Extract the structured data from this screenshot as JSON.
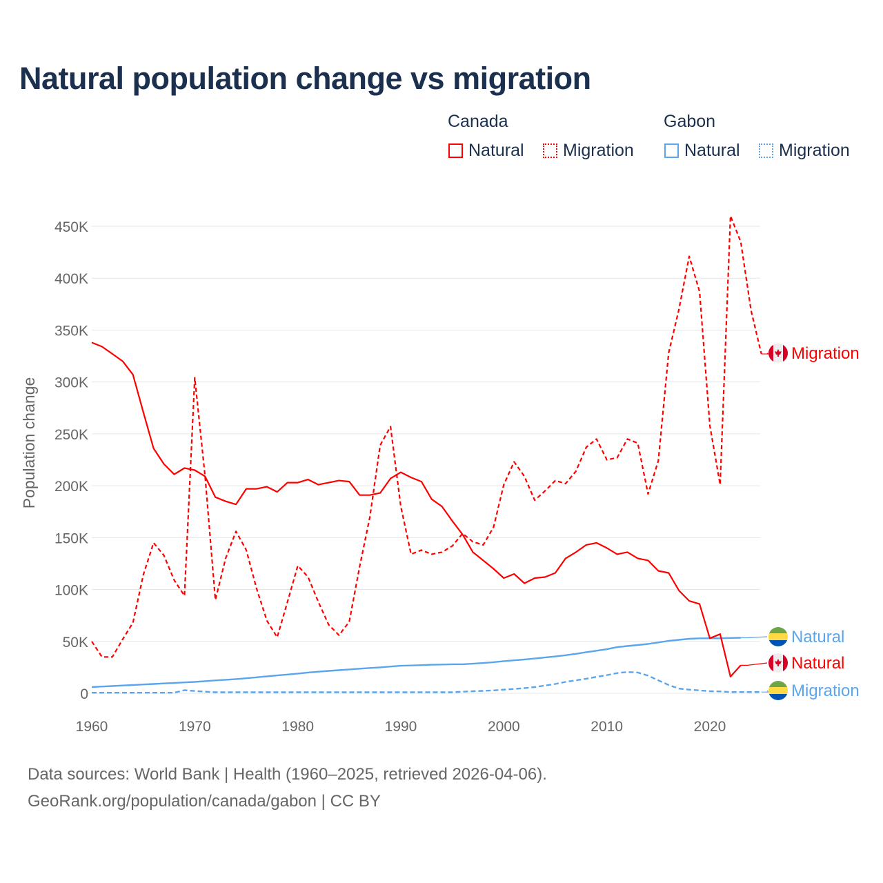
{
  "colors": {
    "canada": "#ff0000",
    "gabon": "#5aa5ec",
    "title": "#1b2f4e",
    "grid": "#e6e6e6",
    "axis_text": "#666666"
  },
  "legend": {
    "groups": [
      {
        "country": "Canada",
        "color": "#ff0000",
        "items": [
          "Natural",
          "Migration"
        ]
      },
      {
        "country": "Gabon",
        "color": "#5aa5ec",
        "items": [
          "Natural",
          "Migration"
        ]
      }
    ]
  },
  "footer": {
    "line1": "Data sources: World Bank | Health (1960–2025, retrieved 2026-04-06).",
    "line2": "GeoRank.org/population/canada/gabon | CC BY"
  },
  "chart_data": {
    "type": "line",
    "title": "Natural population change vs migration",
    "xlabel": "",
    "ylabel": "Population change",
    "xlim": [
      1960,
      2025
    ],
    "ylim": [
      0,
      450000
    ],
    "x_ticks": [
      1960,
      1970,
      1980,
      1990,
      2000,
      2010,
      2020
    ],
    "x_tick_labels": [
      "1960",
      "1970",
      "1980",
      "1990",
      "2000",
      "2010",
      "2020"
    ],
    "y_ticks": [
      0,
      50000,
      100000,
      150000,
      200000,
      250000,
      300000,
      350000,
      400000,
      450000
    ],
    "y_tick_labels": [
      "0",
      "50K",
      "100K",
      "150K",
      "200K",
      "250K",
      "300K",
      "350K",
      "400K",
      "450K"
    ],
    "grid": true,
    "legend_position": "top-right",
    "series": [
      {
        "name": "Canada Natural",
        "country": "Canada",
        "kind": "Natural",
        "label": "Natural",
        "color": "#ff0000",
        "dash": "solid",
        "flag": "canada-flag",
        "start_year": 1960,
        "values_k": [
          338,
          334,
          327,
          320,
          307,
          271,
          236,
          221,
          211,
          217,
          215,
          209,
          189,
          185,
          182,
          197,
          197,
          199,
          194,
          203,
          203,
          206,
          201,
          203,
          205,
          204,
          191,
          191,
          193,
          207,
          213,
          208,
          204,
          187,
          180,
          166,
          153,
          136,
          128,
          120,
          111,
          115,
          106,
          111,
          112,
          116,
          130,
          136,
          143,
          145,
          140,
          134,
          136,
          130,
          128,
          118,
          116,
          99,
          89,
          86,
          53,
          57,
          16,
          27
        ]
      },
      {
        "name": "Canada Migration",
        "country": "Canada",
        "kind": "Migration",
        "label": "Migration",
        "color": "#ff0000",
        "dash": "dashed",
        "flag": "canada-flag",
        "start_year": 1960,
        "values_k": [
          50,
          35,
          35,
          52,
          68,
          114,
          145,
          133,
          109,
          94,
          304,
          209,
          90,
          130,
          156,
          138,
          101,
          70,
          54,
          88,
          123,
          112,
          88,
          66,
          56,
          69,
          122,
          170,
          239,
          257,
          180,
          134,
          138,
          134,
          136,
          142,
          154,
          146,
          143,
          160,
          201,
          223,
          209,
          186,
          195,
          205,
          202,
          214,
          237,
          245,
          225,
          227,
          245,
          241,
          192,
          224,
          328,
          370,
          421,
          387,
          258,
          201,
          460,
          435,
          369,
          327
        ]
      },
      {
        "name": "Gabon Natural",
        "country": "Gabon",
        "kind": "Natural",
        "label": "Natural",
        "color": "#5aa5ec",
        "dash": "solid",
        "flag": "gabon-flag",
        "start_year": 1960,
        "values_k": [
          6,
          6.5,
          7,
          7.5,
          8,
          8.5,
          9,
          9.5,
          10,
          10.5,
          11,
          11.7,
          12.4,
          13,
          13.7,
          14.5,
          15.4,
          16.3,
          17.2,
          18.1,
          19,
          20,
          20.8,
          21.6,
          22.3,
          23,
          23.7,
          24.4,
          25,
          25.8,
          26.5,
          26.8,
          27.1,
          27.5,
          27.7,
          28,
          28,
          28.5,
          29.2,
          30,
          31,
          31.8,
          32.6,
          33.5,
          34.5,
          35.5,
          36.7,
          38,
          39.6,
          41,
          42.5,
          44.5,
          45.5,
          46.5,
          47.5,
          49,
          50.5,
          51.5,
          52.5,
          53,
          53,
          53,
          53.3,
          53.5
        ]
      },
      {
        "name": "Gabon Migration",
        "country": "Gabon",
        "kind": "Migration",
        "label": "Migration",
        "color": "#5aa5ec",
        "dash": "dashed",
        "flag": "gabon-flag",
        "start_year": 1960,
        "values_k": [
          0.5,
          0.5,
          0.5,
          0.5,
          0.5,
          0.5,
          0.5,
          0.5,
          0.5,
          3,
          2.2,
          1.5,
          1,
          1,
          1,
          1,
          1,
          1,
          1,
          1,
          1,
          1,
          1,
          1,
          1,
          1,
          1,
          1,
          1,
          1,
          1,
          1,
          1,
          1,
          1,
          1,
          1.5,
          2,
          2.3,
          2.8,
          3.5,
          4.2,
          5,
          6,
          7.5,
          9,
          11,
          12.5,
          14,
          15.8,
          17.5,
          19.5,
          20.5,
          20,
          17,
          12.5,
          8,
          4.5,
          3.5,
          2.8,
          2,
          1.8,
          1.2,
          1.2,
          1.2,
          1.2
        ]
      }
    ]
  }
}
